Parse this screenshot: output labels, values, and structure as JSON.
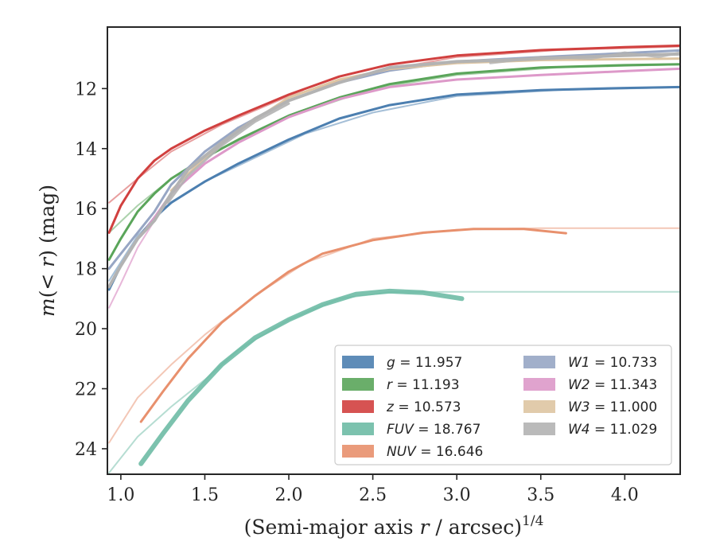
{
  "chart_data": {
    "type": "line",
    "xlabel": "(Semi-major axis r / arcsec)",
    "xlabel_parts": {
      "pre": "(Semi-major axis ",
      "var": "r",
      "post": " / arcsec)",
      "sup": "1/4"
    },
    "ylabel_parts": {
      "pre": "m",
      "mid": "(< ",
      "var": "r",
      "post": ") (mag)"
    },
    "xlim": [
      0.92,
      4.33
    ],
    "ylim": [
      24.85,
      9.95
    ],
    "y_inverted": true,
    "xticks": [
      1.0,
      1.5,
      2.0,
      2.5,
      3.0,
      3.5,
      4.0
    ],
    "xtick_labels": [
      "1.0",
      "1.5",
      "2.0",
      "2.5",
      "3.0",
      "3.5",
      "4.0"
    ],
    "yticks": [
      12,
      14,
      16,
      18,
      20,
      22,
      24
    ],
    "ytick_labels": [
      "12",
      "14",
      "16",
      "18",
      "20",
      "22",
      "24"
    ],
    "grid": false,
    "legend": {
      "placement": "lower-right",
      "columns": 2
    },
    "series": [
      {
        "band": "g",
        "value": "11.957",
        "color": "#4c7fb0",
        "curves": [
          {
            "width": 3,
            "alpha": 1,
            "points": [
              [
                0.93,
                18.7
              ],
              [
                1.0,
                17.9
              ],
              [
                1.1,
                17.0
              ],
              [
                1.2,
                16.3
              ],
              [
                1.3,
                15.8
              ],
              [
                1.5,
                15.1
              ],
              [
                1.7,
                14.5
              ],
              [
                2.0,
                13.7
              ],
              [
                2.3,
                13.0
              ],
              [
                2.6,
                12.55
              ],
              [
                3.0,
                12.2
              ],
              [
                3.5,
                12.05
              ],
              [
                4.0,
                11.98
              ],
              [
                4.33,
                11.95
              ]
            ]
          },
          {
            "width": 2,
            "alpha": 0.5,
            "points": [
              [
                0.93,
                18.4
              ],
              [
                1.1,
                16.9
              ],
              [
                1.3,
                15.8
              ],
              [
                1.5,
                15.1
              ],
              [
                1.8,
                14.3
              ],
              [
                2.1,
                13.5
              ],
              [
                2.5,
                12.8
              ],
              [
                3.0,
                12.25
              ],
              [
                3.6,
                12.05
              ],
              [
                4.33,
                11.96
              ]
            ]
          }
        ]
      },
      {
        "band": "r",
        "value": "11.193",
        "color": "#5aa55a",
        "curves": [
          {
            "width": 3,
            "alpha": 1,
            "points": [
              [
                0.93,
                17.7
              ],
              [
                1.0,
                17.0
              ],
              [
                1.1,
                16.1
              ],
              [
                1.2,
                15.5
              ],
              [
                1.3,
                15.0
              ],
              [
                1.5,
                14.3
              ],
              [
                1.7,
                13.7
              ],
              [
                2.0,
                12.9
              ],
              [
                2.3,
                12.3
              ],
              [
                2.6,
                11.85
              ],
              [
                3.0,
                11.5
              ],
              [
                3.5,
                11.3
              ],
              [
                4.0,
                11.22
              ],
              [
                4.33,
                11.19
              ]
            ]
          },
          {
            "width": 2,
            "alpha": 0.5,
            "points": [
              [
                0.93,
                16.8
              ],
              [
                1.1,
                15.9
              ],
              [
                1.3,
                15.0
              ],
              [
                1.6,
                14.0
              ],
              [
                2.0,
                12.95
              ],
              [
                2.5,
                12.0
              ],
              [
                3.0,
                11.55
              ],
              [
                3.6,
                11.3
              ],
              [
                4.33,
                11.2
              ]
            ]
          }
        ]
      },
      {
        "band": "z",
        "value": "10.573",
        "color": "#d1403f",
        "curves": [
          {
            "width": 3,
            "alpha": 1,
            "points": [
              [
                0.93,
                16.8
              ],
              [
                1.0,
                15.9
              ],
              [
                1.1,
                15.0
              ],
              [
                1.2,
                14.4
              ],
              [
                1.3,
                14.0
              ],
              [
                1.5,
                13.4
              ],
              [
                1.7,
                12.9
              ],
              [
                2.0,
                12.2
              ],
              [
                2.3,
                11.6
              ],
              [
                2.6,
                11.2
              ],
              [
                3.0,
                10.9
              ],
              [
                3.5,
                10.72
              ],
              [
                4.0,
                10.62
              ],
              [
                4.33,
                10.57
              ]
            ]
          },
          {
            "width": 2,
            "alpha": 0.5,
            "points": [
              [
                0.93,
                15.8
              ],
              [
                1.1,
                15.0
              ],
              [
                1.3,
                14.1
              ],
              [
                1.6,
                13.2
              ],
              [
                2.0,
                12.25
              ],
              [
                2.5,
                11.45
              ],
              [
                3.0,
                10.95
              ],
              [
                3.6,
                10.72
              ],
              [
                4.33,
                10.6
              ]
            ]
          }
        ]
      },
      {
        "band": "FUV",
        "value": "18.767",
        "color": "#6ebba5",
        "curves": [
          {
            "width": 6,
            "alpha": 0.9,
            "points": [
              [
                1.12,
                24.5
              ],
              [
                1.25,
                23.5
              ],
              [
                1.4,
                22.4
              ],
              [
                1.6,
                21.2
              ],
              [
                1.8,
                20.3
              ],
              [
                2.0,
                19.7
              ],
              [
                2.2,
                19.2
              ],
              [
                2.4,
                18.85
              ],
              [
                2.6,
                18.75
              ],
              [
                2.8,
                18.8
              ],
              [
                3.03,
                19.0
              ]
            ]
          },
          {
            "width": 2,
            "alpha": 0.5,
            "points": [
              [
                0.93,
                24.8
              ],
              [
                1.1,
                23.6
              ],
              [
                1.3,
                22.6
              ],
              [
                1.5,
                21.7
              ],
              [
                1.7,
                20.7
              ],
              [
                2.0,
                19.7
              ],
              [
                2.3,
                19.0
              ],
              [
                2.6,
                18.78
              ],
              [
                3.0,
                18.77
              ],
              [
                3.5,
                18.77
              ],
              [
                4.33,
                18.77
              ]
            ]
          }
        ]
      },
      {
        "band": "NUV",
        "value": "16.646",
        "color": "#e8906d",
        "curves": [
          {
            "width": 3,
            "alpha": 1,
            "points": [
              [
                1.12,
                23.1
              ],
              [
                1.25,
                22.1
              ],
              [
                1.4,
                21.0
              ],
              [
                1.6,
                19.8
              ],
              [
                1.8,
                18.9
              ],
              [
                2.0,
                18.1
              ],
              [
                2.2,
                17.5
              ],
              [
                2.5,
                17.05
              ],
              [
                2.8,
                16.8
              ],
              [
                3.1,
                16.68
              ],
              [
                3.4,
                16.68
              ],
              [
                3.65,
                16.82
              ]
            ]
          },
          {
            "width": 2,
            "alpha": 0.5,
            "points": [
              [
                0.93,
                23.8
              ],
              [
                1.1,
                22.3
              ],
              [
                1.3,
                21.2
              ],
              [
                1.5,
                20.2
              ],
              [
                1.8,
                18.9
              ],
              [
                2.1,
                17.8
              ],
              [
                2.5,
                17.0
              ],
              [
                3.0,
                16.7
              ],
              [
                3.5,
                16.65
              ],
              [
                4.33,
                16.65
              ]
            ]
          }
        ]
      },
      {
        "band": "W1",
        "value": "10.733",
        "color": "#97a6c4",
        "curves": [
          {
            "width": 3,
            "alpha": 1,
            "points": [
              [
                0.93,
                18.0
              ],
              [
                1.0,
                17.5
              ],
              [
                1.1,
                16.8
              ],
              [
                1.2,
                16.1
              ],
              [
                1.3,
                15.2
              ],
              [
                1.5,
                14.1
              ],
              [
                1.7,
                13.3
              ],
              [
                2.0,
                12.4
              ],
              [
                2.3,
                11.8
              ],
              [
                2.6,
                11.4
              ],
              [
                3.0,
                11.1
              ],
              [
                3.5,
                10.95
              ],
              [
                4.0,
                10.82
              ],
              [
                4.33,
                10.73
              ]
            ]
          }
        ]
      },
      {
        "band": "W2",
        "value": "11.343",
        "color": "#dd99c9",
        "curves": [
          {
            "width": 3,
            "alpha": 1,
            "points": [
              [
                1.12,
                16.9
              ],
              [
                1.2,
                16.3
              ],
              [
                1.3,
                15.5
              ],
              [
                1.5,
                14.5
              ],
              [
                1.7,
                13.8
              ],
              [
                2.0,
                12.95
              ],
              [
                2.3,
                12.35
              ],
              [
                2.6,
                11.95
              ],
              [
                3.0,
                11.7
              ],
              [
                3.5,
                11.55
              ],
              [
                4.0,
                11.42
              ],
              [
                4.33,
                11.34
              ]
            ]
          },
          {
            "width": 2,
            "alpha": 0.7,
            "points": [
              [
                0.93,
                19.3
              ],
              [
                1.0,
                18.5
              ],
              [
                1.1,
                17.3
              ],
              [
                1.2,
                16.4
              ],
              [
                1.3,
                15.6
              ]
            ]
          }
        ]
      },
      {
        "band": "W3",
        "value": "11.000",
        "color": "#dec5a2",
        "curves": [
          {
            "width": 3,
            "alpha": 1,
            "points": [
              [
                1.3,
                15.4
              ],
              [
                1.5,
                14.3
              ],
              [
                1.7,
                13.4
              ],
              [
                2.0,
                12.3
              ],
              [
                2.3,
                11.7
              ],
              [
                2.6,
                11.35
              ],
              [
                3.0,
                11.15
              ],
              [
                3.5,
                11.05
              ],
              [
                4.0,
                11.02
              ],
              [
                4.33,
                11.0
              ]
            ]
          }
        ]
      },
      {
        "band": "W4",
        "value": "11.029",
        "color": "#b3b3b3",
        "curves": [
          {
            "width": 4,
            "alpha": 1,
            "points": [
              [
                0.93,
                18.6
              ],
              [
                1.0,
                17.9
              ],
              [
                1.1,
                17.0
              ],
              [
                1.2,
                16.4
              ],
              [
                1.3,
                15.5
              ],
              [
                1.4,
                14.7
              ],
              [
                1.6,
                13.8
              ],
              [
                1.8,
                13.0
              ],
              [
                2.0,
                12.4
              ],
              [
                2.3,
                11.8
              ],
              [
                2.6,
                11.3
              ],
              [
                3.0,
                11.1
              ],
              [
                3.3,
                11.05
              ],
              [
                3.5,
                11.0
              ],
              [
                3.7,
                10.95
              ],
              [
                4.0,
                10.9
              ],
              [
                4.33,
                10.85
              ]
            ]
          },
          {
            "width": 3,
            "alpha": 0.9,
            "points": [
              [
                1.28,
                15.8
              ],
              [
                1.4,
                14.9
              ],
              [
                1.6,
                13.9
              ],
              [
                1.8,
                13.1
              ],
              [
                2.0,
                12.5
              ]
            ]
          },
          {
            "width": 3,
            "alpha": 0.8,
            "points": [
              [
                3.2,
                11.15
              ],
              [
                3.5,
                10.95
              ],
              [
                3.8,
                11.0
              ],
              [
                4.0,
                10.8
              ],
              [
                4.2,
                10.95
              ],
              [
                4.33,
                10.8
              ]
            ]
          }
        ]
      }
    ]
  }
}
